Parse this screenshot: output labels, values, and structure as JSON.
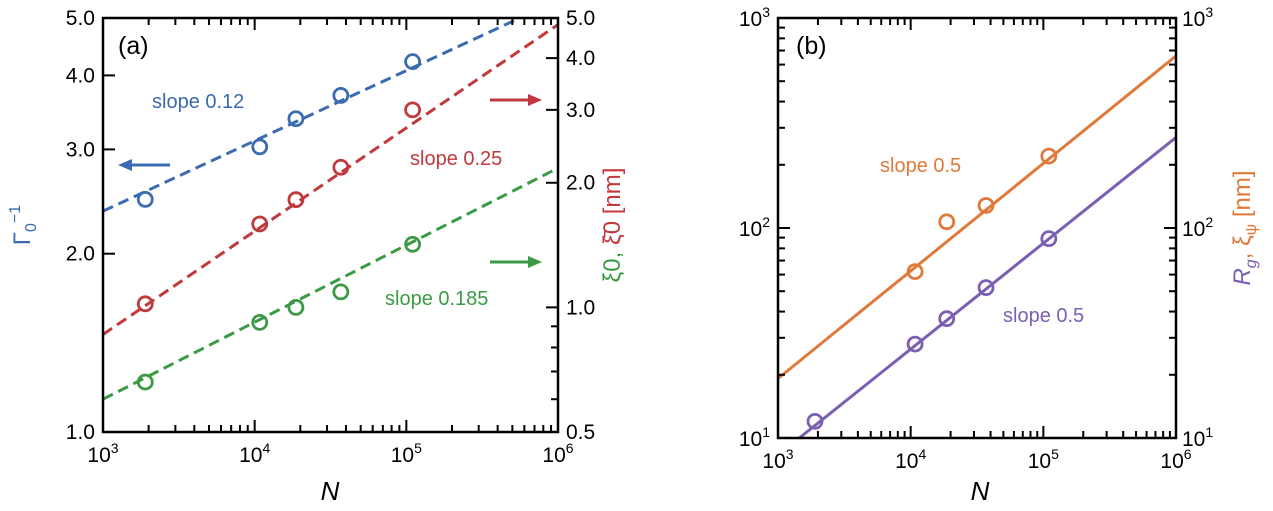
{
  "colors": {
    "blue": "#3b6bb0",
    "red": "#c1393d",
    "green": "#3c9a46",
    "orange": "#e07a3a",
    "purple": "#7b5fb2",
    "axis": "#000000"
  },
  "chart_data": [
    {
      "type": "scatter",
      "panel_label": "(a)",
      "xlabel": "N",
      "xscale": "log",
      "xlim": [
        1000,
        1000000
      ],
      "x_ticks": [
        {
          "value": 1000,
          "base": "10",
          "exp": "3"
        },
        {
          "value": 10000,
          "base": "10",
          "exp": "4"
        },
        {
          "value": 100000,
          "base": "10",
          "exp": "5"
        },
        {
          "value": 1000000,
          "base": "10",
          "exp": "6"
        }
      ],
      "left_axis": {
        "label_main": "Γ",
        "label_sub": "0",
        "label_sup": "−1",
        "scale": "log",
        "lim": [
          1.0,
          5.0
        ],
        "ticks": [
          {
            "value": 1.0,
            "label": "1.0"
          },
          {
            "value": 2.0,
            "label": "2.0"
          },
          {
            "value": 3.0,
            "label": "3.0"
          },
          {
            "value": 4.0,
            "label": "4.0"
          },
          {
            "value": 5.0,
            "label": "5.0"
          }
        ]
      },
      "right_axis": {
        "label_green": "ξ0, ",
        "label_red": "ξ̄0 [nm]",
        "scale": "log",
        "lim": [
          0.5,
          5.0
        ],
        "ticks": [
          {
            "value": 0.5,
            "label": "0.5"
          },
          {
            "value": 1.0,
            "label": "1.0"
          },
          {
            "value": 2.0,
            "label": "2.0"
          },
          {
            "value": 3.0,
            "label": "3.0"
          },
          {
            "value": 4.0,
            "label": "4.0"
          },
          {
            "value": 5.0,
            "label": "5.0"
          }
        ]
      },
      "series": [
        {
          "name": "Γ0^-1",
          "color": "blue",
          "axis": "left",
          "x": [
            1900,
            10800,
            18700,
            37000,
            110000
          ],
          "y": [
            2.47,
            3.03,
            3.38,
            3.7,
            4.22
          ],
          "fit": {
            "x0": 1000,
            "x1": 560000,
            "y0": 2.36,
            "y1": 5.0
          },
          "annotation": "slope 0.12"
        },
        {
          "name": "ξ̄0",
          "color": "red",
          "axis": "right",
          "x": [
            1900,
            10800,
            18700,
            37000,
            110000
          ],
          "y": [
            1.02,
            1.59,
            1.82,
            2.18,
            3.0
          ],
          "fit": {
            "x0": 1000,
            "x1": 1000000,
            "y0": 0.86,
            "y1": 4.82
          },
          "annotation": "slope 0.25"
        },
        {
          "name": "ξ0",
          "color": "green",
          "axis": "right",
          "x": [
            1900,
            10800,
            18700,
            37000,
            110000
          ],
          "y": [
            0.66,
            0.92,
            1.0,
            1.09,
            1.42
          ],
          "fit": {
            "x0": 1000,
            "x1": 1000000,
            "y0": 0.6,
            "y1": 2.17
          },
          "annotation": "slope 0.185"
        }
      ]
    },
    {
      "type": "scatter",
      "panel_label": "(b)",
      "xlabel": "N",
      "xscale": "log",
      "xlim": [
        1000,
        1000000
      ],
      "x_ticks": [
        {
          "value": 1000,
          "base": "10",
          "exp": "3"
        },
        {
          "value": 10000,
          "base": "10",
          "exp": "4"
        },
        {
          "value": 100000,
          "base": "10",
          "exp": "5"
        },
        {
          "value": 1000000,
          "base": "10",
          "exp": "6"
        }
      ],
      "yscale": "log",
      "ylim": [
        10,
        1000
      ],
      "y_ticks": [
        {
          "value": 10,
          "base": "10",
          "exp": "1"
        },
        {
          "value": 100,
          "base": "10",
          "exp": "2"
        },
        {
          "value": 1000,
          "base": "10",
          "exp": "3"
        }
      ],
      "right_axis": {
        "label_purple": "R",
        "label_purple_sub": "g",
        "label_orange": ", ξ",
        "label_orange_sub": "ψ",
        "label_orange_unit": " [nm]"
      },
      "series": [
        {
          "name": "ξψ",
          "color": "orange",
          "x": [
            10800,
            18700,
            37000,
            110000
          ],
          "y": [
            62,
            107,
            128,
            220
          ],
          "fit": {
            "x0": 1000,
            "x1": 1000000,
            "y0": 19.2,
            "y1": 660
          },
          "annotation": "slope 0.5"
        },
        {
          "name": "Rg",
          "color": "purple",
          "x": [
            1900,
            10800,
            18700,
            37000,
            110000
          ],
          "y": [
            12,
            28,
            37,
            52,
            89
          ],
          "fit": {
            "x0": 1000,
            "x1": 1000000,
            "y0": 8.3,
            "y1": 270
          },
          "annotation": "slope 0.5"
        }
      ]
    }
  ]
}
